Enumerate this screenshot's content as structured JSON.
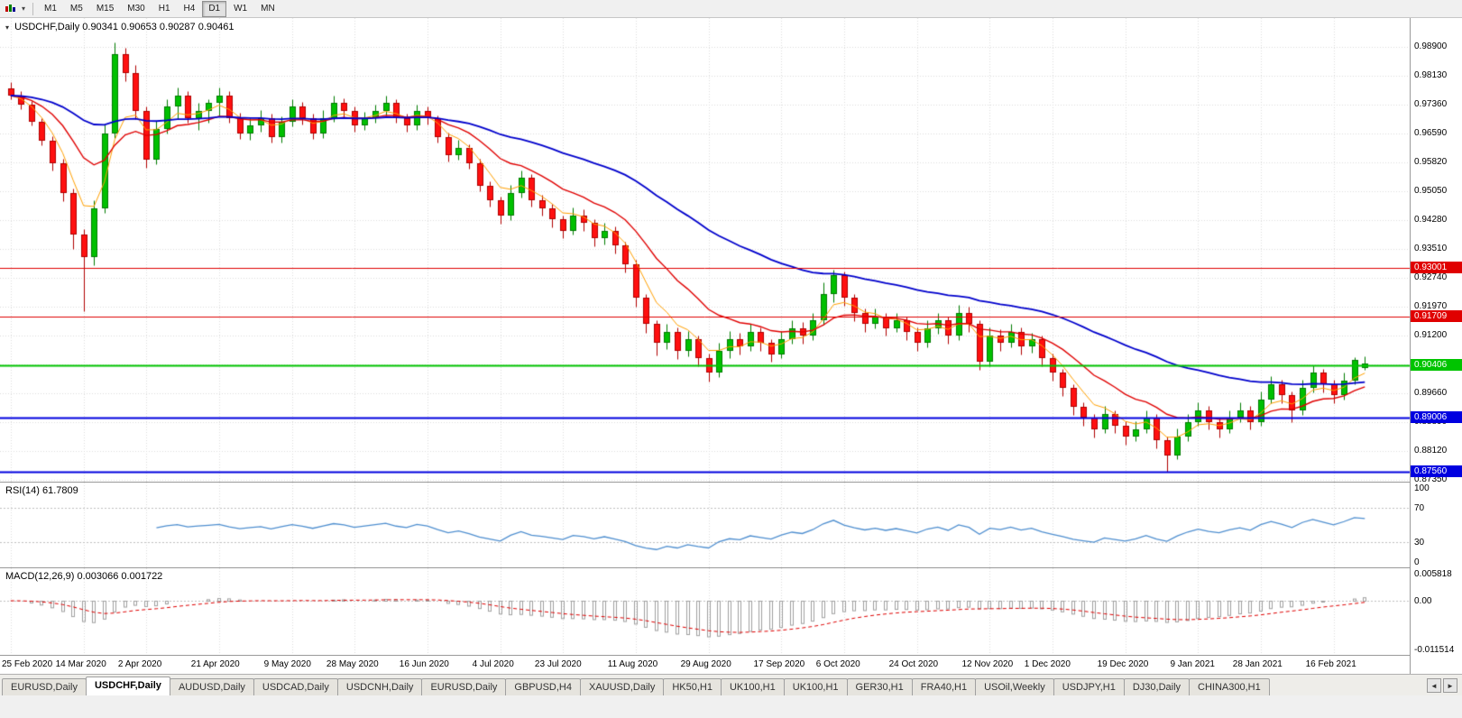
{
  "toolbar": {
    "timeframes": [
      "M1",
      "M5",
      "M15",
      "M30",
      "H1",
      "H4",
      "D1",
      "W1",
      "MN"
    ],
    "active_timeframe": "D1",
    "chart_type_caret": "▾"
  },
  "chart": {
    "symbol": "USDCHF,Daily",
    "ohlc": "0.90341 0.90653 0.90287 0.90461",
    "title_marker": "▾",
    "price_axis": [
      "0.98900",
      "0.98130",
      "0.97360",
      "0.96590",
      "0.95820",
      "0.95050",
      "0.94280",
      "0.93510",
      "0.92740",
      "0.91970",
      "0.91200",
      "0.90430",
      "0.89660",
      "0.88890",
      "0.88120",
      "0.87350"
    ],
    "levels": [
      {
        "value": "0.93001",
        "color": "#e00000",
        "width": 1
      },
      {
        "value": "0.91709",
        "color": "#e00000",
        "width": 1
      },
      {
        "value": "0.90406",
        "color": "#00c400",
        "width": 2
      },
      {
        "value": "0.89006",
        "color": "#0000e0",
        "width": 2
      },
      {
        "value": "0.87560",
        "color": "#0000e0",
        "width": 2
      }
    ],
    "colors": {
      "up": "#00c000",
      "up_edge": "#007c00",
      "down": "#ff1010",
      "down_edge": "#b00000",
      "ma_fast": "#ffa000",
      "ma_mid": "#e00000",
      "ma_slow": "#0000cc",
      "rsi": "#4f8fd0",
      "macd_hist": "#a0a0a0",
      "macd_signal": "#e00000"
    }
  },
  "rsi_panel": {
    "label": "RSI(14)",
    "value": "61.7809",
    "axis": [
      {
        "label": "100",
        "v": 100
      },
      {
        "label": "70",
        "v": 70
      },
      {
        "label": "30",
        "v": 30
      },
      {
        "label": "0",
        "v": 0
      }
    ],
    "guides": [
      70,
      30
    ]
  },
  "macd_panel": {
    "label": "MACD(12,26,9)",
    "values": "0.003066 0.001722",
    "axis": [
      {
        "label": "0.005818",
        "v": 0.005818
      },
      {
        "label": "0.00",
        "v": 0
      },
      {
        "label": "-0.011514",
        "v": -0.011514
      }
    ]
  },
  "tabs": {
    "items": [
      "EURUSD,Daily",
      "USDCHF,Daily",
      "AUDUSD,Daily",
      "USDCAD,Daily",
      "USDCNH,Daily",
      "EURUSD,Daily",
      "GBPUSD,H4",
      "XAUUSD,Daily",
      "HK50,H1",
      "UK100,H1",
      "UK100,H1",
      "GER30,H1",
      "FRA40,H1",
      "USOil,Weekly",
      "USDJPY,H1",
      "DJ30,Daily",
      "CHINA300,H1"
    ],
    "active_index": 1,
    "scroll_left_icon": "◄",
    "scroll_right_icon": "►"
  },
  "chart_data": {
    "type": "candlestick",
    "symbol": "USDCHF",
    "timeframe": "Daily",
    "last_ohlc": [
      0.90341,
      0.90653,
      0.90287,
      0.90461
    ],
    "price_range": {
      "top": 0.9967,
      "bottom": 0.873
    },
    "x_ticks": [
      {
        "i": 0,
        "label": "25 Feb 2020"
      },
      {
        "i": 7,
        "label": "14 Mar 2020"
      },
      {
        "i": 13,
        "label": "2 Apr 2020"
      },
      {
        "i": 20,
        "label": "21 Apr 2020"
      },
      {
        "i": 27,
        "label": "9 May 2020"
      },
      {
        "i": 33,
        "label": "28 May 2020"
      },
      {
        "i": 40,
        "label": "16 Jun 2020"
      },
      {
        "i": 47,
        "label": "4 Jul 2020"
      },
      {
        "i": 53,
        "label": "23 Jul 2020"
      },
      {
        "i": 60,
        "label": "11 Aug 2020"
      },
      {
        "i": 67,
        "label": "29 Aug 2020"
      },
      {
        "i": 74,
        "label": "17 Sep 2020"
      },
      {
        "i": 80,
        "label": "6 Oct 2020"
      },
      {
        "i": 87,
        "label": "24 Oct 2020"
      },
      {
        "i": 94,
        "label": "12 Nov 2020"
      },
      {
        "i": 100,
        "label": "1 Dec 2020"
      },
      {
        "i": 107,
        "label": "19 Dec 2020"
      },
      {
        "i": 114,
        "label": "9 Jan 2021"
      },
      {
        "i": 120,
        "label": "28 Jan 2021"
      },
      {
        "i": 127,
        "label": "16 Feb 2021"
      }
    ],
    "candles": [
      [
        0.978,
        0.9795,
        0.975,
        0.976
      ],
      [
        0.976,
        0.9772,
        0.9724,
        0.9735
      ],
      [
        0.9735,
        0.9745,
        0.968,
        0.969
      ],
      [
        0.969,
        0.9701,
        0.9628,
        0.964
      ],
      [
        0.964,
        0.9652,
        0.956,
        0.958
      ],
      [
        0.958,
        0.9592,
        0.9478,
        0.95
      ],
      [
        0.95,
        0.9512,
        0.935,
        0.939
      ],
      [
        0.939,
        0.9404,
        0.9185,
        0.933
      ],
      [
        0.933,
        0.9482,
        0.9308,
        0.946
      ],
      [
        0.946,
        0.9682,
        0.9448,
        0.966
      ],
      [
        0.966,
        0.9901,
        0.9648,
        0.987
      ],
      [
        0.987,
        0.9888,
        0.9798,
        0.982
      ],
      [
        0.982,
        0.9841,
        0.9698,
        0.972
      ],
      [
        0.972,
        0.9732,
        0.9568,
        0.959
      ],
      [
        0.959,
        0.9692,
        0.9578,
        0.967
      ],
      [
        0.967,
        0.9751,
        0.9658,
        0.973
      ],
      [
        0.973,
        0.9782,
        0.9698,
        0.976
      ],
      [
        0.976,
        0.9771,
        0.9688,
        0.97
      ],
      [
        0.97,
        0.9741,
        0.9668,
        0.972
      ],
      [
        0.972,
        0.9751,
        0.9688,
        0.974
      ],
      [
        0.974,
        0.9781,
        0.9708,
        0.976
      ],
      [
        0.976,
        0.9771,
        0.9688,
        0.97
      ],
      [
        0.97,
        0.9714,
        0.9645,
        0.966
      ],
      [
        0.966,
        0.9701,
        0.9641,
        0.968
      ],
      [
        0.968,
        0.9721,
        0.9664,
        0.97
      ],
      [
        0.97,
        0.9711,
        0.9634,
        0.965
      ],
      [
        0.965,
        0.9704,
        0.9636,
        0.969
      ],
      [
        0.969,
        0.9751,
        0.9679,
        0.973
      ],
      [
        0.973,
        0.9744,
        0.9684,
        0.97
      ],
      [
        0.97,
        0.9712,
        0.9645,
        0.966
      ],
      [
        0.966,
        0.9721,
        0.9648,
        0.97
      ],
      [
        0.97,
        0.9761,
        0.969,
        0.974
      ],
      [
        0.974,
        0.9754,
        0.9699,
        0.972
      ],
      [
        0.972,
        0.9731,
        0.9664,
        0.968
      ],
      [
        0.968,
        0.9716,
        0.9668,
        0.97
      ],
      [
        0.97,
        0.9736,
        0.9689,
        0.972
      ],
      [
        0.972,
        0.9761,
        0.9708,
        0.974
      ],
      [
        0.974,
        0.9751,
        0.9689,
        0.97
      ],
      [
        0.97,
        0.9711,
        0.9664,
        0.968
      ],
      [
        0.968,
        0.9736,
        0.9669,
        0.972
      ],
      [
        0.972,
        0.9731,
        0.9684,
        0.97
      ],
      [
        0.97,
        0.9706,
        0.9634,
        0.965
      ],
      [
        0.965,
        0.9661,
        0.9584,
        0.96
      ],
      [
        0.96,
        0.9641,
        0.9589,
        0.962
      ],
      [
        0.962,
        0.9631,
        0.9564,
        0.958
      ],
      [
        0.958,
        0.9591,
        0.9504,
        0.952
      ],
      [
        0.952,
        0.9531,
        0.9464,
        0.948
      ],
      [
        0.948,
        0.9491,
        0.9419,
        0.944
      ],
      [
        0.944,
        0.9521,
        0.9429,
        0.95
      ],
      [
        0.95,
        0.9561,
        0.9489,
        0.954
      ],
      [
        0.954,
        0.9551,
        0.9464,
        0.948
      ],
      [
        0.948,
        0.9496,
        0.9439,
        0.946
      ],
      [
        0.946,
        0.9471,
        0.9409,
        0.943
      ],
      [
        0.943,
        0.9441,
        0.9379,
        0.94
      ],
      [
        0.94,
        0.9461,
        0.9389,
        0.944
      ],
      [
        0.944,
        0.9456,
        0.9399,
        0.942
      ],
      [
        0.942,
        0.9431,
        0.9359,
        0.938
      ],
      [
        0.938,
        0.9421,
        0.9364,
        0.94
      ],
      [
        0.94,
        0.9411,
        0.9339,
        0.936
      ],
      [
        0.936,
        0.9371,
        0.9289,
        0.931
      ],
      [
        0.931,
        0.9321,
        0.9198,
        0.922
      ],
      [
        0.922,
        0.9231,
        0.9128,
        0.915
      ],
      [
        0.915,
        0.9161,
        0.9068,
        0.91
      ],
      [
        0.91,
        0.9151,
        0.9084,
        0.913
      ],
      [
        0.913,
        0.9141,
        0.9058,
        0.908
      ],
      [
        0.908,
        0.9131,
        0.9064,
        0.911
      ],
      [
        0.911,
        0.9121,
        0.9038,
        0.906
      ],
      [
        0.906,
        0.9071,
        0.8998,
        0.902
      ],
      [
        0.902,
        0.9101,
        0.9009,
        0.908
      ],
      [
        0.908,
        0.9131,
        0.9059,
        0.911
      ],
      [
        0.911,
        0.9126,
        0.9069,
        0.909
      ],
      [
        0.909,
        0.9151,
        0.9079,
        0.913
      ],
      [
        0.913,
        0.9141,
        0.9079,
        0.91
      ],
      [
        0.91,
        0.9111,
        0.9049,
        0.907
      ],
      [
        0.907,
        0.9131,
        0.9059,
        0.911
      ],
      [
        0.911,
        0.9161,
        0.9099,
        0.914
      ],
      [
        0.914,
        0.9156,
        0.9099,
        0.912
      ],
      [
        0.912,
        0.9181,
        0.9109,
        0.916
      ],
      [
        0.916,
        0.9261,
        0.9149,
        0.923
      ],
      [
        0.923,
        0.9296,
        0.9209,
        0.928
      ],
      [
        0.928,
        0.9291,
        0.9199,
        0.922
      ],
      [
        0.922,
        0.9231,
        0.9159,
        0.918
      ],
      [
        0.918,
        0.9191,
        0.9129,
        0.915
      ],
      [
        0.915,
        0.9191,
        0.9139,
        0.917
      ],
      [
        0.917,
        0.9181,
        0.9119,
        0.914
      ],
      [
        0.914,
        0.9181,
        0.9129,
        0.916
      ],
      [
        0.916,
        0.9171,
        0.9109,
        0.913
      ],
      [
        0.913,
        0.9141,
        0.9079,
        0.91
      ],
      [
        0.91,
        0.9161,
        0.9089,
        0.914
      ],
      [
        0.914,
        0.9181,
        0.9124,
        0.916
      ],
      [
        0.916,
        0.9171,
        0.9099,
        0.912
      ],
      [
        0.912,
        0.9201,
        0.9109,
        0.918
      ],
      [
        0.918,
        0.9196,
        0.9129,
        0.915
      ],
      [
        0.915,
        0.9161,
        0.9029,
        0.905
      ],
      [
        0.905,
        0.9141,
        0.9039,
        0.912
      ],
      [
        0.912,
        0.9136,
        0.9079,
        0.91
      ],
      [
        0.91,
        0.9151,
        0.9089,
        0.913
      ],
      [
        0.913,
        0.9141,
        0.9069,
        0.909
      ],
      [
        0.909,
        0.9126,
        0.9074,
        0.911
      ],
      [
        0.911,
        0.9121,
        0.9039,
        0.906
      ],
      [
        0.906,
        0.9071,
        0.8999,
        0.902
      ],
      [
        0.902,
        0.9031,
        0.8959,
        0.898
      ],
      [
        0.898,
        0.8991,
        0.8909,
        0.893
      ],
      [
        0.893,
        0.8941,
        0.8879,
        0.89
      ],
      [
        0.89,
        0.8911,
        0.8849,
        0.887
      ],
      [
        0.887,
        0.8931,
        0.8859,
        0.891
      ],
      [
        0.891,
        0.8921,
        0.8859,
        0.888
      ],
      [
        0.888,
        0.8891,
        0.8829,
        0.885
      ],
      [
        0.885,
        0.8891,
        0.8839,
        0.887
      ],
      [
        0.887,
        0.8921,
        0.8859,
        0.89
      ],
      [
        0.89,
        0.8911,
        0.8819,
        0.884
      ],
      [
        0.884,
        0.8851,
        0.8757,
        0.88
      ],
      [
        0.88,
        0.8871,
        0.8789,
        0.885
      ],
      [
        0.885,
        0.8911,
        0.8839,
        0.889
      ],
      [
        0.889,
        0.8941,
        0.8879,
        0.892
      ],
      [
        0.892,
        0.8931,
        0.8869,
        0.889
      ],
      [
        0.889,
        0.8901,
        0.8849,
        0.887
      ],
      [
        0.887,
        0.8921,
        0.8859,
        0.89
      ],
      [
        0.89,
        0.8941,
        0.8889,
        0.892
      ],
      [
        0.892,
        0.8931,
        0.8869,
        0.889
      ],
      [
        0.889,
        0.8971,
        0.8879,
        0.895
      ],
      [
        0.895,
        0.9011,
        0.8939,
        0.899
      ],
      [
        0.899,
        0.9001,
        0.8939,
        0.896
      ],
      [
        0.896,
        0.8971,
        0.8889,
        0.892
      ],
      [
        0.892,
        0.9001,
        0.8909,
        0.898
      ],
      [
        0.898,
        0.9041,
        0.8969,
        0.902
      ],
      [
        0.902,
        0.9031,
        0.8969,
        0.899
      ],
      [
        0.899,
        0.9001,
        0.8939,
        0.896
      ],
      [
        0.896,
        0.9021,
        0.8949,
        0.9
      ],
      [
        0.9,
        0.9062,
        0.8989,
        0.9055
      ],
      [
        0.9034,
        0.9065,
        0.9029,
        0.9046
      ]
    ],
    "indicators": {
      "moving_averages": [
        "fast (orange)",
        "medium (red)",
        "slow (blue)"
      ],
      "rsi": "RSI(14) = 61.7809",
      "macd": "MACD(12,26,9) = 0.003066 / signal 0.001722"
    }
  }
}
